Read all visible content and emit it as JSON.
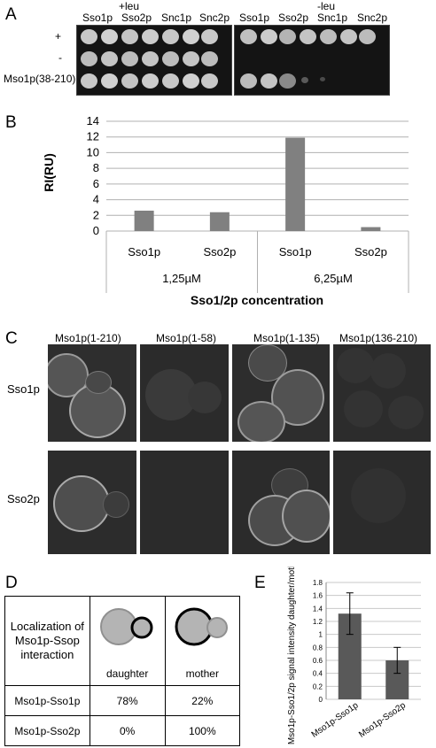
{
  "panels": {
    "a": "A",
    "b": "B",
    "c": "C",
    "d": "D",
    "e": "E"
  },
  "panel_a": {
    "plus_leu": "+leu",
    "minus_leu": "-leu",
    "columns": [
      "Sso1p",
      "Sso2p",
      "Snc1p",
      "Snc2p"
    ],
    "rows": [
      "+",
      "-",
      "Mso1p(38-210)"
    ]
  },
  "panel_c": {
    "columns": [
      "Mso1p(1-210)",
      "Mso1p(1-58)",
      "Mso1p(1-135)",
      "Mso1p(136-210)"
    ],
    "rows": [
      "Sso1p",
      "Sso2p"
    ]
  },
  "panel_d": {
    "header": "Localization of Mso1p-Ssop interaction",
    "col_daughter": "daughter",
    "col_mother": "mother",
    "rows": [
      {
        "label": "Mso1p-Sso1p",
        "daughter": "78%",
        "mother": "22%"
      },
      {
        "label": "Mso1p-Sso2p",
        "daughter": "0%",
        "mother": "100%"
      }
    ]
  },
  "chart_data": [
    {
      "type": "bar",
      "ylabel": "RI(RU)",
      "xlabel": "Sso1/2p concentration",
      "ylim": [
        0,
        14
      ],
      "yticks": [
        0,
        2,
        4,
        6,
        8,
        10,
        12,
        14
      ],
      "categories": [
        "Sso1p",
        "Sso2p",
        "Sso1p",
        "Sso2p"
      ],
      "groups": [
        "1,25µM",
        "6,25µM"
      ],
      "values": [
        2.6,
        2.4,
        11.9,
        0.5
      ],
      "grid": true,
      "bar_color": "#808080"
    },
    {
      "type": "bar",
      "ylabel": "Mso1p-Sso1/2p signal intensity daughter/mother cell",
      "ylim": [
        0,
        1.8
      ],
      "yticks": [
        "0",
        "0.2",
        "0.4",
        "0.6",
        "0.8",
        "1",
        "1.2",
        "1.4",
        "1.6",
        "1.8"
      ],
      "categories": [
        "Mso1p-Sso1p",
        "Mso1p-Sso2p"
      ],
      "values": [
        1.32,
        0.6
      ],
      "errors": [
        0.32,
        0.2
      ],
      "grid": true,
      "bar_color": "#595959"
    }
  ]
}
